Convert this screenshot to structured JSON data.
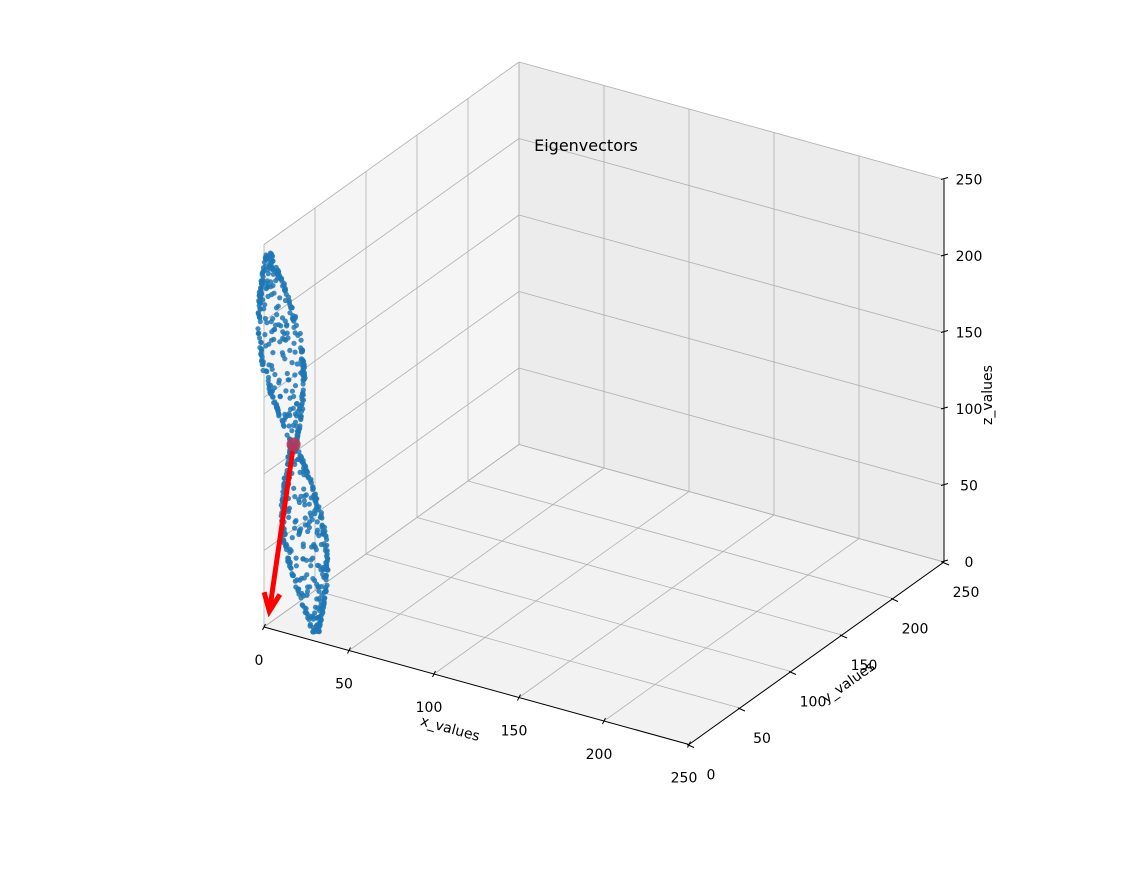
{
  "chart_data": {
    "type": "scatter",
    "projection": "3d",
    "title": "Eigenvectors",
    "xlabel": "x_values",
    "ylabel": "y_values",
    "zlabel": "z_values",
    "xlim": [
      0,
      250
    ],
    "ylim": [
      0,
      250
    ],
    "zlim": [
      0,
      250
    ],
    "xticks": [
      0,
      50,
      100,
      150,
      200,
      250
    ],
    "yticks": [
      0,
      50,
      100,
      150,
      200,
      250
    ],
    "zticks": [
      0,
      50,
      100,
      150,
      200,
      250
    ],
    "grid": true,
    "colors": {
      "points": "#1f77b4",
      "mean": "#b03a5b",
      "arrow": "#ff0000",
      "pane_floor": "#f2f2f2",
      "pane_back": "#ececec",
      "pane_side": "#f5f5f5",
      "grid": "#b0b0b0"
    },
    "mean_point": {
      "x": 15,
      "y": 4,
      "z": 122
    },
    "eigenvector_arrow": {
      "from": [
        15,
        4,
        122
      ],
      "to": [
        2,
        2,
        10
      ]
    },
    "point_cloud": {
      "description_shape": "twisted ribbon",
      "center": [
        15,
        4,
        122
      ],
      "top": [
        1,
        3,
        242
      ],
      "bottom": [
        27,
        6,
        2
      ],
      "max_width": 22,
      "point_count": 700
    }
  }
}
